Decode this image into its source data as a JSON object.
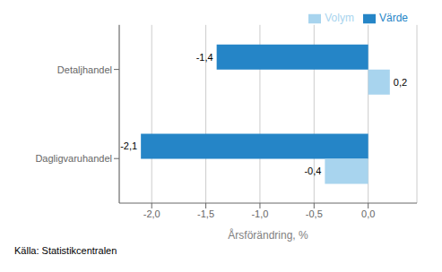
{
  "chart_data": {
    "type": "bar",
    "orientation": "horizontal",
    "categories": [
      "Dagligvaruhandel",
      "Detaljhandel"
    ],
    "series": [
      {
        "name": "Värde",
        "color": "#2585C7",
        "values": [
          -2.1,
          -1.4
        ],
        "value_labels": [
          "-2,1",
          "-1,4"
        ]
      },
      {
        "name": "Volym",
        "color": "#A8D4EE",
        "values": [
          -0.4,
          0.2
        ],
        "value_labels": [
          "-0,4",
          "0,2"
        ]
      }
    ],
    "xlabel": "Årsförändring, %",
    "xlim": [
      -2.3,
      0.45
    ],
    "xticks": [
      {
        "value": -2.0,
        "label": "-2,0"
      },
      {
        "value": -1.5,
        "label": "-1,5"
      },
      {
        "value": -1.0,
        "label": "-1,0"
      },
      {
        "value": -0.5,
        "label": "-0,5"
      },
      {
        "value": 0.0,
        "label": "0,0"
      }
    ],
    "data_labels": true,
    "grid": true,
    "legend": "upper right",
    "annotations": [
      "Källa: Statistikcentralen"
    ]
  }
}
